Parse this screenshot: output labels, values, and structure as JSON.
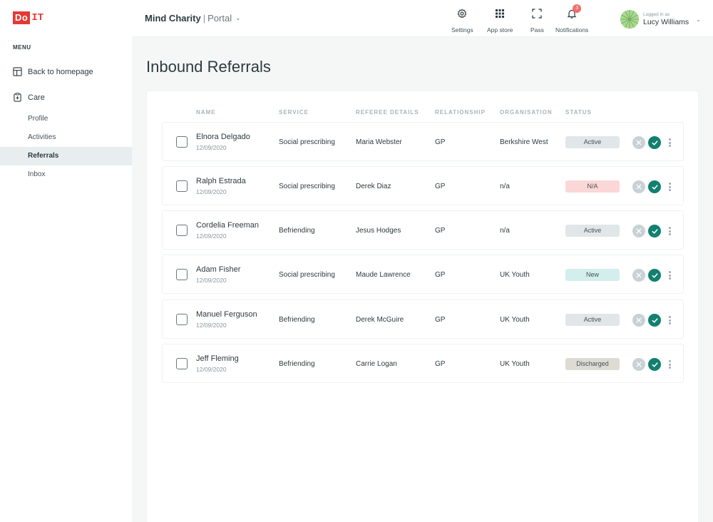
{
  "brand": {
    "do": "Do",
    "it": "IT"
  },
  "sidebar": {
    "menu_label": "MENU",
    "back_home": "Back to homepage",
    "care": "Care",
    "sub_items": [
      {
        "label": "Profile"
      },
      {
        "label": "Activities"
      },
      {
        "label": "Referrals"
      },
      {
        "label": "Inbox"
      }
    ]
  },
  "header": {
    "org_name": "Mind Charity",
    "org_sep": "|",
    "org_portal": "Portal",
    "tools": {
      "settings": "Settings",
      "appstore": "App store",
      "pass": "Pass",
      "notifications": "Notifications",
      "notif_count": "3"
    },
    "user": {
      "logged_in_as": "Logged in as",
      "name": "Lucy Williams"
    }
  },
  "page_title": "Inbound Referrals",
  "table": {
    "headers": {
      "name": "NAME",
      "service": "SERVICE",
      "referee": "REFEREE DETAILS",
      "relationship": "RELATIONSHIP",
      "organisation": "ORGANISATION",
      "status": "STATUS"
    },
    "rows": [
      {
        "name": "Elnora Delgado",
        "date": "12/09/2020",
        "service": "Social prescribing",
        "referee": "Maria Webster",
        "relationship": "GP",
        "organisation": "Berkshire West",
        "status": "Active"
      },
      {
        "name": "Ralph Estrada",
        "date": "12/09/2020",
        "service": "Social prescribing",
        "referee": "Derek Diaz",
        "relationship": "GP",
        "organisation": "n/a",
        "status": "N/A"
      },
      {
        "name": "Cordelia Freeman",
        "date": "12/09/2020",
        "service": "Befriending",
        "referee": "Jesus Hodges",
        "relationship": "GP",
        "organisation": "n/a",
        "status": "Active"
      },
      {
        "name": "Adam Fisher",
        "date": "12/09/2020",
        "service": "Social prescribing",
        "referee": "Maude Lawrence",
        "relationship": "GP",
        "organisation": "UK Youth",
        "status": "New"
      },
      {
        "name": "Manuel Ferguson",
        "date": "12/09/2020",
        "service": "Befriending",
        "referee": "Derek McGuire",
        "relationship": "GP",
        "organisation": "UK Youth",
        "status": "Active"
      },
      {
        "name": "Jeff Fleming",
        "date": "12/09/2020",
        "service": "Befriending",
        "referee": "Carrie Logan",
        "relationship": "GP",
        "organisation": "UK Youth",
        "status": "Discharged"
      }
    ]
  },
  "colors": {
    "brand_red": "#e53935",
    "accept_green": "#13806f",
    "status_active": "#e1e6e9",
    "status_na": "#fbd7d7",
    "status_new": "#d3eeec",
    "status_discharged": "#dcdcd4"
  },
  "icons": {
    "settings": "gear-icon",
    "appstore": "grid-icon",
    "pass": "scan-frame-icon",
    "notifications": "bell-icon",
    "back_home": "layout-icon",
    "care": "clipboard-plus-icon",
    "reject": "close-icon",
    "accept": "check-icon",
    "more": "kebab-icon"
  }
}
